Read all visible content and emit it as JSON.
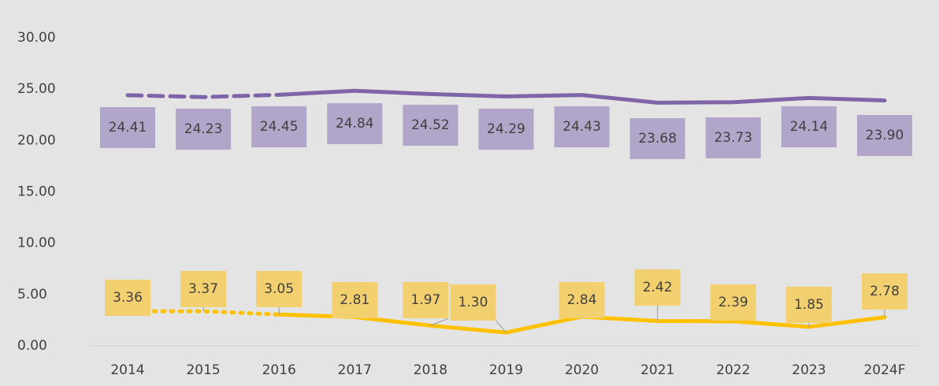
{
  "chart_data": {
    "type": "line",
    "categories": [
      "2014",
      "2015",
      "2016",
      "2017",
      "2018",
      "2019",
      "2020",
      "2021",
      "2022",
      "2023",
      "2024F"
    ],
    "series": [
      {
        "color": "#7f65a8",
        "label_color": "#b1a5c9",
        "dashed_through": 2,
        "values": [
          24.41,
          24.23,
          24.45,
          24.84,
          24.52,
          24.29,
          24.43,
          23.68,
          23.73,
          24.14,
          23.9
        ],
        "value_labels": [
          "24.41",
          "24.23",
          "24.45",
          "24.84",
          "24.52",
          "24.29",
          "24.43",
          "23.68",
          "23.73",
          "24.14",
          "23.90"
        ]
      },
      {
        "color": "#ffc000",
        "label_color": "#f3d06f",
        "dotted_through": 2,
        "values": [
          3.36,
          3.37,
          3.05,
          2.81,
          1.97,
          1.3,
          2.84,
          2.42,
          2.39,
          1.85,
          2.78
        ],
        "value_labels": [
          "3.36",
          "3.37",
          "3.05",
          "2.81",
          "1.97",
          "1.30",
          "2.84",
          "2.42",
          "2.39",
          "1.85",
          "2.78"
        ]
      }
    ],
    "ylim": [
      0,
      30
    ],
    "yticks": [
      {
        "value": 0,
        "label": "0.00"
      },
      {
        "value": 5,
        "label": "5.00"
      },
      {
        "value": 10,
        "label": "10.00"
      },
      {
        "value": 15,
        "label": "15.00"
      },
      {
        "value": 20,
        "label": "20.00"
      },
      {
        "value": 25,
        "label": "25.00"
      },
      {
        "value": 30,
        "label": "30.00"
      }
    ]
  }
}
